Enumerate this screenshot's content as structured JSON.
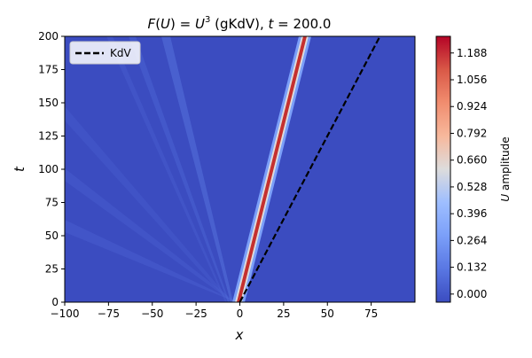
{
  "chart_data": {
    "type": "heatmap",
    "title": {
      "prefix": "F",
      "open": "(",
      "var": "U",
      "close_eq": ") = ",
      "var2": "U",
      "exp": "3",
      "middle": " (gKdV), ",
      "tvar": "t",
      "eq_value": " = 200.0"
    },
    "xlabel": "x",
    "ylabel": "t",
    "xlim": [
      -100,
      100
    ],
    "ylim": [
      0,
      200
    ],
    "x_ticks": [
      -100,
      -75,
      -50,
      -25,
      0,
      25,
      50,
      75
    ],
    "y_ticks": [
      0,
      25,
      50,
      75,
      100,
      125,
      150,
      175,
      200
    ],
    "grid": false,
    "soliton_path": {
      "description_points": [
        [
          0,
          0
        ],
        [
          37.5,
          200
        ]
      ],
      "peak_amplitude": 1.25
    },
    "series": [
      {
        "name": "KdV",
        "style": "dashed",
        "color": "#000000",
        "x": [
          0,
          80
        ],
        "y": [
          0,
          200
        ]
      }
    ],
    "legend": {
      "placement": "top-left"
    },
    "colorbar": {
      "label_var": "U",
      "label_text": " amplitude",
      "ticks": [
        "0.000",
        "0.132",
        "0.264",
        "0.396",
        "0.528",
        "0.660",
        "0.792",
        "0.924",
        "1.056",
        "1.188"
      ],
      "range": [
        -0.04,
        1.27
      ],
      "colormap": "coolwarm"
    }
  }
}
